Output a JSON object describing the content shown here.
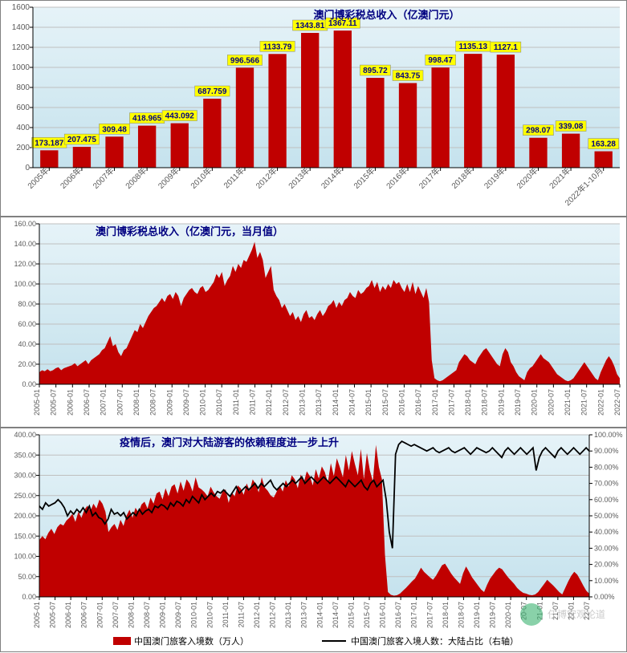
{
  "panel1": {
    "title": "澳门博彩税总收入（亿澳门元）",
    "title_fontsize": 13,
    "title_color": "#000080",
    "y_min": 0,
    "y_max": 1600,
    "y_step": 200,
    "bg_gradient_top": "#e6f3f8",
    "bg_gradient_bottom": "#c5e2ed",
    "bar_color": "#c00000",
    "label_bg": "#ffff00",
    "label_border": "#808080",
    "label_text": "#000080",
    "axis_color": "#000000",
    "grid_color": "#bfbfbf",
    "tick_fontsize": 10,
    "categories": [
      "2005年",
      "2006年",
      "2007年",
      "2008年",
      "2009年",
      "2010年",
      "2011年",
      "2012年",
      "2013年",
      "2014年",
      "2015年",
      "2016年",
      "2017年",
      "2018年",
      "2019年",
      "2020年",
      "2021年",
      "2022年1-10月"
    ],
    "values": [
      173.187,
      207.475,
      309.48,
      418.965,
      443.092,
      687.759,
      996.566,
      1133.79,
      1343.81,
      1367.11,
      895.72,
      843.75,
      998.47,
      1135.13,
      1127.1,
      298.07,
      339.08,
      163.28
    ]
  },
  "panel2": {
    "title": "澳门博彩税总收入（亿澳门元，当月值）",
    "title_fontsize": 13,
    "title_color": "#000080",
    "y_min": 0,
    "y_max": 160,
    "y_step": 20,
    "bg_gradient_top": "#e6f3f8",
    "bg_gradient_bottom": "#c5e2ed",
    "area_color": "#c00000",
    "axis_color": "#000000",
    "grid_color": "#bfbfbf",
    "tick_fontsize": 9,
    "x_labels": [
      "2005-01",
      "2005-07",
      "2006-01",
      "2006-07",
      "2007-01",
      "2007-07",
      "2008-01",
      "2008-07",
      "2009-01",
      "2009-07",
      "2010-01",
      "2010-07",
      "2011-01",
      "2011-07",
      "2012-01",
      "2012-07",
      "2013-01",
      "2013-07",
      "2014-01",
      "2014-07",
      "2015-01",
      "2015-07",
      "2016-01",
      "2016-07",
      "2017-01",
      "2017-07",
      "2018-01",
      "2018-07",
      "2019-01",
      "2019-07",
      "2020-01",
      "2020-07",
      "2021-01",
      "2021-07",
      "2022-01",
      "2022-07"
    ],
    "series": [
      12,
      14,
      13,
      15,
      13,
      14,
      16,
      17,
      14,
      16,
      17,
      18,
      19,
      21,
      18,
      20,
      22,
      24,
      20,
      24,
      26,
      28,
      30,
      34,
      36,
      42,
      48,
      38,
      40,
      32,
      28,
      34,
      36,
      42,
      48,
      54,
      52,
      60,
      56,
      62,
      68,
      72,
      76,
      78,
      82,
      86,
      82,
      88,
      90,
      85,
      92,
      88,
      78,
      86,
      90,
      94,
      96,
      92,
      90,
      96,
      98,
      92,
      94,
      98,
      102,
      110,
      106,
      112,
      98,
      104,
      108,
      118,
      112,
      120,
      116,
      124,
      122,
      128,
      134,
      142,
      126,
      132,
      124,
      106,
      112,
      118,
      94,
      88,
      84,
      76,
      80,
      74,
      68,
      72,
      64,
      68,
      62,
      70,
      74,
      66,
      68,
      64,
      70,
      74,
      68,
      72,
      78,
      80,
      84,
      76,
      82,
      78,
      84,
      86,
      92,
      88,
      86,
      94,
      90,
      92,
      96,
      98,
      104,
      96,
      102,
      92,
      98,
      94,
      100,
      96,
      104,
      100,
      102,
      96,
      92,
      100,
      92,
      102,
      90,
      98,
      92,
      86,
      96,
      82,
      24,
      6,
      4,
      3,
      4,
      6,
      8,
      10,
      12,
      14,
      22,
      26,
      30,
      28,
      24,
      22,
      20,
      26,
      30,
      34,
      36,
      32,
      28,
      24,
      20,
      18,
      30,
      36,
      32,
      22,
      18,
      12,
      8,
      6,
      4,
      12,
      16,
      18,
      22,
      26,
      30,
      26,
      24,
      22,
      18,
      14,
      10,
      8,
      6,
      4,
      3,
      4,
      6,
      10,
      14,
      18,
      22,
      18,
      14,
      10,
      6,
      4,
      12,
      18,
      24,
      28,
      24,
      18,
      10,
      6
    ]
  },
  "panel3": {
    "title": "疫情后，澳门对大陆游客的依赖程度进一步上升",
    "title_fontsize": 13,
    "title_color": "#000080",
    "y_min": 0,
    "y_max": 400,
    "y_step": 50,
    "y2_min": 0,
    "y2_max": 100,
    "y2_step": 10,
    "bg_gradient_top": "#e6f3f8",
    "bg_gradient_bottom": "#c5e2ed",
    "area_color": "#c00000",
    "line_color": "#000000",
    "axis_color": "#000000",
    "grid_color": "#bfbfbf",
    "tick_fontsize": 9,
    "x_labels": [
      "2005-01",
      "2005-07",
      "2006-01",
      "2006-07",
      "2007-01",
      "2007-07",
      "2008-01",
      "2008-07",
      "2009-01",
      "2009-07",
      "2010-01",
      "2010-07",
      "2011-01",
      "2011-07",
      "2012-01",
      "2012-07",
      "2013-01",
      "2013-07",
      "2014-01",
      "2014-07",
      "2015-01",
      "2015-07",
      "2016-01",
      "2016-07",
      "2017-01",
      "2017-07",
      "2018-01",
      "2018-07",
      "2019-01",
      "2019-07",
      "2020-01",
      "20-07",
      "21-01",
      "21-07",
      "22-01",
      "22-07"
    ],
    "legend1": "中国澳门旅客入境数（万人）",
    "legend2": "中国澳门旅客入境人数：大陆占比（右轴）",
    "visitors": [
      140,
      150,
      142,
      158,
      168,
      155,
      172,
      180,
      176,
      188,
      195,
      205,
      185,
      210,
      195,
      215,
      225,
      212,
      230,
      218,
      240,
      230,
      210,
      160,
      172,
      180,
      165,
      190,
      175,
      200,
      215,
      195,
      220,
      208,
      228,
      235,
      218,
      245,
      230,
      255,
      260,
      240,
      268,
      248,
      272,
      278,
      255,
      285,
      262,
      290,
      280,
      260,
      295,
      270,
      265,
      258,
      248,
      272,
      258,
      248,
      242,
      260,
      265,
      232,
      258,
      248,
      275,
      268,
      252,
      280,
      262,
      290,
      278,
      258,
      295,
      270,
      262,
      250,
      245,
      260,
      275,
      260,
      288,
      272,
      300,
      290,
      268,
      302,
      282,
      310,
      298,
      275,
      315,
      292,
      322,
      308,
      282,
      330,
      298,
      342,
      320,
      295,
      350,
      312,
      360,
      328,
      300,
      365,
      290,
      355,
      312,
      285,
      375,
      320,
      290,
      105,
      12,
      5,
      3,
      4,
      8,
      15,
      22,
      30,
      38,
      45,
      58,
      72,
      62,
      55,
      48,
      42,
      52,
      65,
      78,
      82,
      70,
      58,
      48,
      40,
      32,
      58,
      75,
      62,
      48,
      38,
      28,
      18,
      12,
      30,
      45,
      55,
      65,
      72,
      68,
      58,
      48,
      40,
      32,
      22,
      15,
      10,
      8,
      5,
      4,
      6,
      12,
      22,
      32,
      42,
      35,
      28,
      20,
      12,
      6,
      22,
      38,
      52,
      62,
      55,
      42,
      28,
      15,
      8
    ],
    "ratio": [
      56,
      54,
      58,
      56,
      57,
      58,
      60,
      58,
      55,
      50,
      53,
      51,
      54,
      52,
      55,
      52,
      56,
      50,
      52,
      49,
      48,
      45,
      48,
      54,
      51,
      52,
      50,
      52,
      48,
      50,
      52,
      50,
      54,
      51,
      53,
      54,
      52,
      56,
      55,
      57,
      56,
      54,
      58,
      56,
      59,
      58,
      56,
      60,
      58,
      62,
      60,
      58,
      63,
      60,
      62,
      64,
      62,
      65,
      64,
      66,
      64,
      62,
      65,
      68,
      64,
      66,
      68,
      66,
      68,
      70,
      67,
      70,
      68,
      70,
      72,
      68,
      66,
      68,
      70,
      68,
      70,
      72,
      70,
      72,
      74,
      70,
      72,
      74,
      72,
      70,
      72,
      74,
      72,
      70,
      72,
      74,
      72,
      70,
      68,
      72,
      70,
      68,
      70,
      72,
      68,
      66,
      70,
      72,
      68,
      70,
      72,
      60,
      40,
      30,
      88,
      94,
      96,
      95,
      94,
      93,
      94,
      93,
      92,
      91,
      90,
      91,
      92,
      90,
      89,
      90,
      91,
      92,
      90,
      89,
      90,
      91,
      92,
      90,
      88,
      90,
      92,
      91,
      90,
      89,
      90,
      92,
      90,
      88,
      86,
      90,
      92,
      90,
      88,
      90,
      92,
      90,
      88,
      90,
      92,
      78,
      86,
      90,
      92,
      90,
      88,
      86,
      90,
      92,
      90,
      88,
      90,
      92,
      90,
      88,
      90,
      92,
      90
    ]
  },
  "watermark": "任博宏观论道"
}
